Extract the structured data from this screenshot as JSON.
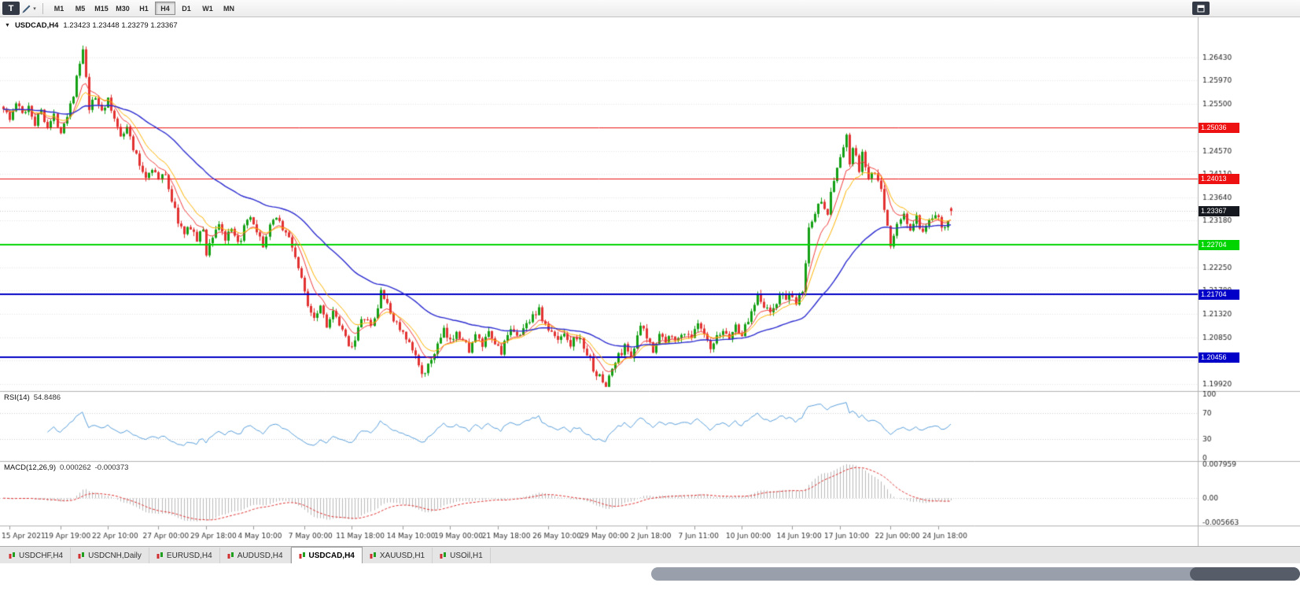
{
  "toolbar": {
    "terminal_label": "T",
    "timeframes": [
      "M1",
      "M5",
      "M15",
      "M30",
      "H1",
      "H4",
      "D1",
      "W1",
      "MN"
    ],
    "active_timeframe": "H4"
  },
  "chart": {
    "symbol_period": "USDCAD,H4",
    "ohlc_text": "1.23423 1.23448 1.23279 1.23367"
  },
  "indicators": {
    "rsi_name": "RSI(14)",
    "rsi_value": "54.8486",
    "macd_name": "MACD(12,26,9)",
    "macd_value1": "0.000262",
    "macd_value2": "-0.000373"
  },
  "tabs": {
    "items": [
      {
        "label": "USDCHF,H4",
        "active": false
      },
      {
        "label": "USDCNH,Daily",
        "active": false
      },
      {
        "label": "EURUSD,H4",
        "active": false
      },
      {
        "label": "AUDUSD,H4",
        "active": false
      },
      {
        "label": "USDCAD,H4",
        "active": true
      },
      {
        "label": "XAUUSD,H1",
        "active": false
      },
      {
        "label": "USOil,H1",
        "active": false
      }
    ]
  },
  "chart_data": {
    "type": "candlestick",
    "symbol": "USDCAD",
    "timeframe": "H4",
    "open": 1.23423,
    "high": 1.23448,
    "low": 1.23279,
    "close": 1.23367,
    "bars_total": 300,
    "volatility": 0.0011,
    "up_color": "#14a014",
    "down_color": "#e23232",
    "y_ticks": [
      "1.26430",
      "1.25970",
      "1.25500",
      "1.25040",
      "1.24570",
      "1.24110",
      "1.23640",
      "1.23180",
      "1.22710",
      "1.22250",
      "1.21780",
      "1.21320",
      "1.20850",
      "1.20390",
      "1.19920"
    ],
    "x_labels": [
      {
        "text": "15 Apr 2021",
        "bar": 2
      },
      {
        "text": "19 Apr 19:00",
        "bar": 18
      },
      {
        "text": "22 Apr 10:00",
        "bar": 33
      },
      {
        "text": "27 Apr 00:00",
        "bar": 49
      },
      {
        "text": "29 Apr 18:00",
        "bar": 64
      },
      {
        "text": "4 May 10:00",
        "bar": 79
      },
      {
        "text": "7 May 00:00",
        "bar": 95
      },
      {
        "text": "11 May 18:00",
        "bar": 110
      },
      {
        "text": "14 May 10:00",
        "bar": 126
      },
      {
        "text": "19 May 00:00",
        "bar": 141
      },
      {
        "text": "21 May 18:00",
        "bar": 156
      },
      {
        "text": "26 May 10:00",
        "bar": 172
      },
      {
        "text": "29 May 00:00",
        "bar": 187
      },
      {
        "text": "2 Jun 18:00",
        "bar": 203
      },
      {
        "text": "7 Jun 11:00",
        "bar": 218
      },
      {
        "text": "10 Jun 00:00",
        "bar": 233
      },
      {
        "text": "14 Jun 19:00",
        "bar": 249
      },
      {
        "text": "17 Jun 10:00",
        "bar": 264
      },
      {
        "text": "22 Jun 00:00",
        "bar": 280
      },
      {
        "text": "24 Jun 18:00",
        "bar": 295
      }
    ],
    "horizontal_lines": [
      {
        "label": "1.25036",
        "price": 1.25036,
        "color": "#ee1111",
        "width": 1
      },
      {
        "label": "1.24013",
        "price": 1.24013,
        "color": "#ee1111",
        "width": 1
      },
      {
        "label": "1.22704",
        "price": 1.22704,
        "color": "#00d400",
        "width": 2
      },
      {
        "label": "1.21704",
        "price": 1.21704,
        "color": "#0000c8",
        "width": 2
      },
      {
        "label": "1.20456",
        "price": 1.20456,
        "color": "#0000c8",
        "width": 2
      }
    ],
    "current_price": {
      "label": "1.23367",
      "value": 1.23367,
      "color": "#15181e"
    },
    "moving_averages": [
      {
        "period": 8,
        "color": "#f23b3b",
        "width": 1
      },
      {
        "period": 13,
        "color": "#ffb300",
        "width": 1
      },
      {
        "period": 48,
        "color": "#2b2bd0",
        "width": 1.4
      }
    ],
    "rsi": {
      "period": 14,
      "levels": [
        100,
        70,
        30,
        0
      ],
      "color": "#5aa0dc"
    },
    "macd": {
      "axis_labels": [
        "0.007959",
        "0.00",
        "-0.005663"
      ],
      "scale_max": 0.007959,
      "scale_min": -0.005663,
      "hist_color": "#b9b9b9",
      "signal_color": "#e03030"
    },
    "price_path_anchors": [
      [
        0,
        1.2545
      ],
      [
        2,
        1.2518
      ],
      [
        4,
        1.2552
      ],
      [
        6,
        1.253
      ],
      [
        8,
        1.2548
      ],
      [
        10,
        1.2512
      ],
      [
        12,
        1.254
      ],
      [
        14,
        1.2505
      ],
      [
        16,
        1.2525
      ],
      [
        18,
        1.2498
      ],
      [
        20,
        1.253
      ],
      [
        22,
        1.2572
      ],
      [
        24,
        1.263
      ],
      [
        25,
        1.2655
      ],
      [
        26,
        1.2598
      ],
      [
        27,
        1.254
      ],
      [
        29,
        1.2562
      ],
      [
        31,
        1.254
      ],
      [
        33,
        1.2556
      ],
      [
        35,
        1.2518
      ],
      [
        37,
        1.2492
      ],
      [
        39,
        1.2503
      ],
      [
        41,
        1.2462
      ],
      [
        43,
        1.2428
      ],
      [
        45,
        1.2405
      ],
      [
        47,
        1.2425
      ],
      [
        49,
        1.2398
      ],
      [
        51,
        1.2412
      ],
      [
        53,
        1.2358
      ],
      [
        55,
        1.2318
      ],
      [
        57,
        1.2288
      ],
      [
        59,
        1.2308
      ],
      [
        61,
        1.2278
      ],
      [
        63,
        1.2302
      ],
      [
        64,
        1.2252
      ],
      [
        66,
        1.2288
      ],
      [
        68,
        1.2312
      ],
      [
        70,
        1.228
      ],
      [
        72,
        1.2296
      ],
      [
        74,
        1.2268
      ],
      [
        76,
        1.2302
      ],
      [
        78,
        1.2322
      ],
      [
        80,
        1.2288
      ],
      [
        82,
        1.227
      ],
      [
        84,
        1.2302
      ],
      [
        86,
        1.233
      ],
      [
        88,
        1.2302
      ],
      [
        90,
        1.2282
      ],
      [
        92,
        1.2248
      ],
      [
        94,
        1.2198
      ],
      [
        96,
        1.2152
      ],
      [
        98,
        1.2128
      ],
      [
        100,
        1.215
      ],
      [
        102,
        1.2112
      ],
      [
        104,
        1.2132
      ],
      [
        106,
        1.2108
      ],
      [
        108,
        1.2082
      ],
      [
        110,
        1.2068
      ],
      [
        112,
        1.2102
      ],
      [
        114,
        1.2126
      ],
      [
        116,
        1.2104
      ],
      [
        118,
        1.2142
      ],
      [
        119,
        1.2182
      ],
      [
        121,
        1.2146
      ],
      [
        123,
        1.2122
      ],
      [
        125,
        1.2102
      ],
      [
        127,
        1.2078
      ],
      [
        129,
        1.2058
      ],
      [
        131,
        1.2032
      ],
      [
        133,
        1.2008
      ],
      [
        135,
        1.2042
      ],
      [
        137,
        1.2068
      ],
      [
        139,
        1.2096
      ],
      [
        141,
        1.2074
      ],
      [
        143,
        1.2102
      ],
      [
        145,
        1.2078
      ],
      [
        147,
        1.2062
      ],
      [
        149,
        1.2086
      ],
      [
        151,
        1.2068
      ],
      [
        153,
        1.209
      ],
      [
        155,
        1.2072
      ],
      [
        157,
        1.2058
      ],
      [
        159,
        1.2084
      ],
      [
        161,
        1.2102
      ],
      [
        163,
        1.2088
      ],
      [
        165,
        1.2112
      ],
      [
        167,
        1.2132
      ],
      [
        169,
        1.2138
      ],
      [
        171,
        1.2108
      ],
      [
        173,
        1.2092
      ],
      [
        175,
        1.2078
      ],
      [
        177,
        1.2098
      ],
      [
        179,
        1.2072
      ],
      [
        181,
        1.2088
      ],
      [
        183,
        1.2066
      ],
      [
        185,
        1.2038
      ],
      [
        187,
        1.2012
      ],
      [
        189,
        1.1996
      ],
      [
        190,
        1.199
      ],
      [
        192,
        1.2022
      ],
      [
        194,
        1.2048
      ],
      [
        196,
        1.2066
      ],
      [
        198,
        1.205
      ],
      [
        200,
        1.2082
      ],
      [
        201,
        1.2108
      ],
      [
        203,
        1.2082
      ],
      [
        205,
        1.2062
      ],
      [
        207,
        1.2092
      ],
      [
        209,
        1.2074
      ],
      [
        211,
        1.2094
      ],
      [
        213,
        1.2078
      ],
      [
        215,
        1.2098
      ],
      [
        217,
        1.2086
      ],
      [
        219,
        1.2108
      ],
      [
        221,
        1.2088
      ],
      [
        223,
        1.2058
      ],
      [
        225,
        1.2082
      ],
      [
        227,
        1.2098
      ],
      [
        229,
        1.2086
      ],
      [
        231,
        1.2106
      ],
      [
        233,
        1.2092
      ],
      [
        235,
        1.2118
      ],
      [
        237,
        1.2155
      ],
      [
        238,
        1.2176
      ],
      [
        240,
        1.2148
      ],
      [
        242,
        1.2132
      ],
      [
        244,
        1.2155
      ],
      [
        246,
        1.217
      ],
      [
        248,
        1.2162
      ],
      [
        250,
        1.2152
      ],
      [
        252,
        1.2178
      ],
      [
        253,
        1.2232
      ],
      [
        254,
        1.2302
      ],
      [
        256,
        1.2332
      ],
      [
        258,
        1.2362
      ],
      [
        260,
        1.2335
      ],
      [
        262,
        1.2402
      ],
      [
        264,
        1.2444
      ],
      [
        266,
        1.2482
      ],
      [
        267,
        1.2432
      ],
      [
        268,
        1.2462
      ],
      [
        270,
        1.2418
      ],
      [
        271,
        1.2448
      ],
      [
        273,
        1.2402
      ],
      [
        275,
        1.2412
      ],
      [
        277,
        1.2375
      ],
      [
        279,
        1.2312
      ],
      [
        280,
        1.2265
      ],
      [
        282,
        1.2308
      ],
      [
        284,
        1.233
      ],
      [
        286,
        1.2298
      ],
      [
        288,
        1.2322
      ],
      [
        290,
        1.2288
      ],
      [
        292,
        1.2312
      ],
      [
        294,
        1.2332
      ],
      [
        296,
        1.2302
      ],
      [
        298,
        1.2322
      ],
      [
        299,
        1.2337
      ]
    ]
  }
}
